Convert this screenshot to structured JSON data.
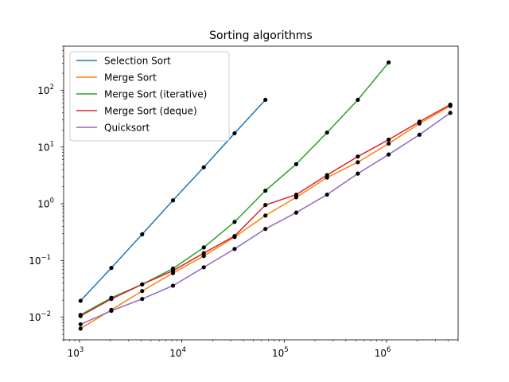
{
  "chart_data": {
    "type": "line",
    "title": "Sorting algorithms",
    "xlabel": "",
    "ylabel": "",
    "xscale": "log",
    "yscale": "log",
    "xlim": [
      700,
      5000000
    ],
    "ylim": [
      0.004,
      600
    ],
    "grid": false,
    "legend": "top-left",
    "x_ticks": [
      {
        "value": 1000,
        "base": "10",
        "exp": "3"
      },
      {
        "value": 10000,
        "base": "10",
        "exp": "4"
      },
      {
        "value": 100000,
        "base": "10",
        "exp": "5"
      },
      {
        "value": 1000000,
        "base": "10",
        "exp": "6"
      }
    ],
    "y_ticks": [
      {
        "value": 0.01,
        "base": "10",
        "exp": "−2"
      },
      {
        "value": 0.1,
        "base": "10",
        "exp": "−1"
      },
      {
        "value": 1,
        "base": "10",
        "exp": "0"
      },
      {
        "value": 10,
        "base": "10",
        "exp": "1"
      },
      {
        "value": 100,
        "base": "10",
        "exp": "2"
      }
    ],
    "marker_color": "#000000",
    "series": [
      {
        "name": "Selection Sort",
        "color": "#1f77b4",
        "points": [
          [
            1024,
            0.0195
          ],
          [
            2048,
            0.074
          ],
          [
            4096,
            0.29
          ],
          [
            8192,
            1.15
          ],
          [
            16384,
            4.4
          ],
          [
            32768,
            17.5
          ],
          [
            65536,
            68
          ]
        ]
      },
      {
        "name": "Merge Sort",
        "color": "#ff7f0e",
        "points": [
          [
            1024,
            0.0063
          ],
          [
            2048,
            0.0135
          ],
          [
            4096,
            0.029
          ],
          [
            8192,
            0.06
          ],
          [
            16384,
            0.12
          ],
          [
            32768,
            0.26
          ],
          [
            65536,
            0.62
          ],
          [
            131072,
            1.3
          ],
          [
            262144,
            2.9
          ],
          [
            524288,
            5.4
          ],
          [
            1048576,
            11.5
          ],
          [
            2097152,
            26
          ],
          [
            4194304,
            53
          ]
        ]
      },
      {
        "name": "Merge Sort (iterative)",
        "color": "#2ca02c",
        "points": [
          [
            1024,
            0.011
          ],
          [
            2048,
            0.022
          ],
          [
            4096,
            0.038
          ],
          [
            8192,
            0.072
          ],
          [
            16384,
            0.17
          ],
          [
            32768,
            0.48
          ],
          [
            65536,
            1.7
          ],
          [
            131072,
            5.0
          ],
          [
            262144,
            18.0
          ],
          [
            524288,
            68
          ],
          [
            1048576,
            310
          ]
        ]
      },
      {
        "name": "Merge Sort (deque)",
        "color": "#d62728",
        "points": [
          [
            1024,
            0.0105
          ],
          [
            2048,
            0.021
          ],
          [
            4096,
            0.038
          ],
          [
            8192,
            0.066
          ],
          [
            16384,
            0.135
          ],
          [
            32768,
            0.27
          ],
          [
            65536,
            0.95
          ],
          [
            131072,
            1.45
          ],
          [
            262144,
            3.2
          ],
          [
            524288,
            6.8
          ],
          [
            1048576,
            13.5
          ],
          [
            2097152,
            28
          ],
          [
            4194304,
            56
          ]
        ]
      },
      {
        "name": "Quicksort",
        "color": "#9467bd",
        "points": [
          [
            1024,
            0.0075
          ],
          [
            2048,
            0.013
          ],
          [
            4096,
            0.021
          ],
          [
            8192,
            0.036
          ],
          [
            16384,
            0.076
          ],
          [
            32768,
            0.16
          ],
          [
            65536,
            0.36
          ],
          [
            131072,
            0.7
          ],
          [
            262144,
            1.45
          ],
          [
            524288,
            3.4
          ],
          [
            1048576,
            7.4
          ],
          [
            2097152,
            16.5
          ],
          [
            4194304,
            40
          ]
        ]
      }
    ]
  }
}
